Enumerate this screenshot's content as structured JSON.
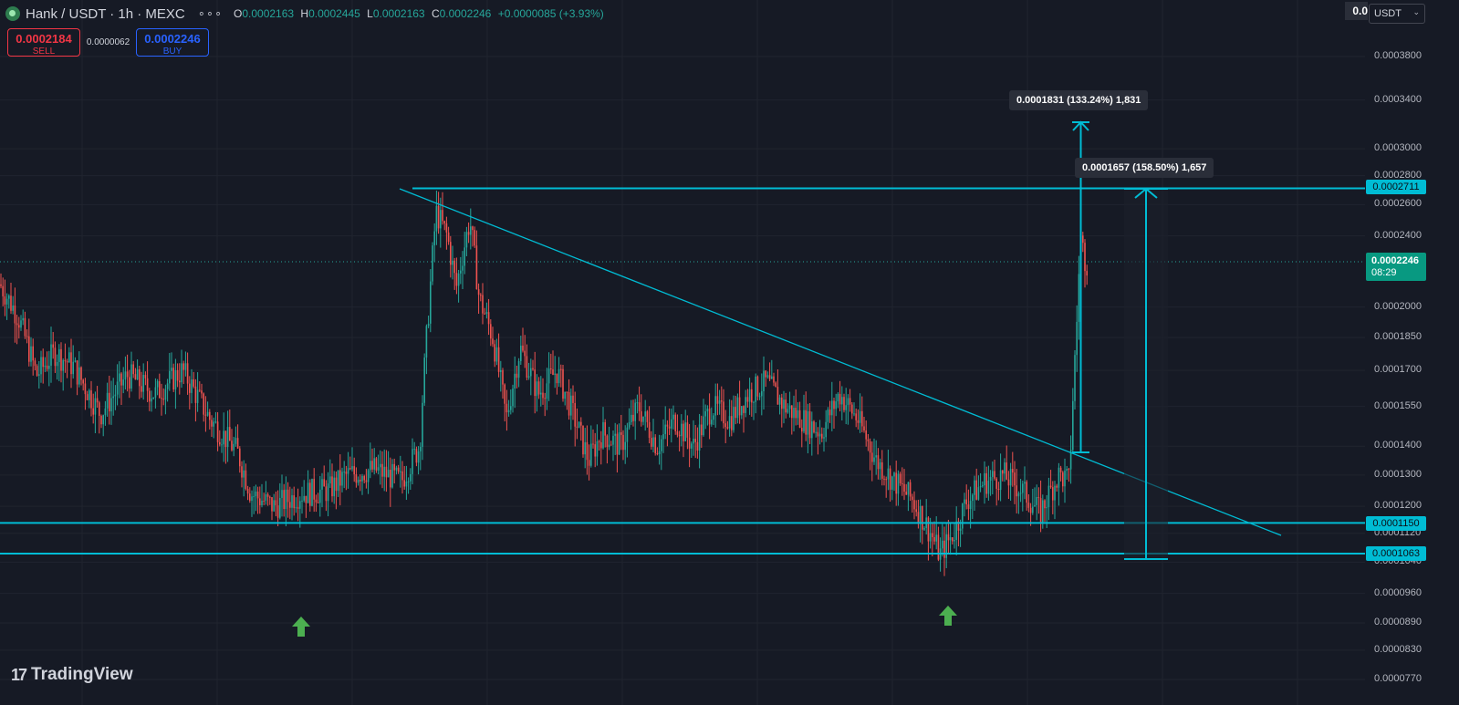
{
  "header": {
    "symbol": "Hank",
    "quote": "USDT",
    "interval": "1h",
    "exchange": "MEXC",
    "title": "Hank / USDT · 1h · MEXC",
    "more_label": "∘∘∘",
    "ohlc": {
      "o_label": "O",
      "o": "0.0002163",
      "h_label": "H",
      "h": "0.0002445",
      "l_label": "L",
      "l": "0.0002163",
      "c_label": "C",
      "c": "0.0002246",
      "change": "+0.0000085 (+3.93%)"
    }
  },
  "trade": {
    "sell_price": "0.0002184",
    "sell_label": "SELL",
    "spread": "0.0000062",
    "buy_price": "0.0002246",
    "buy_label": "BUY"
  },
  "currency_selector": {
    "value": "USDT"
  },
  "top_right_value": "0.0",
  "price_axis": {
    "ticks": [
      "0.0003800",
      "0.0003400",
      "0.0003000",
      "0.0002800",
      "0.0002600",
      "0.0002400",
      "0.0002000",
      "0.0001850",
      "0.0001700",
      "0.0001550",
      "0.0001400",
      "0.0001300",
      "0.0001200",
      "0.0001120",
      "0.0001040",
      "0.0000960",
      "0.0000890",
      "0.0000830",
      "0.0000770"
    ],
    "current_price": "0.0002246",
    "countdown": "08:29",
    "levels": [
      "0.0002711",
      "0.0001150",
      "0.0001063"
    ]
  },
  "measures": [
    {
      "text_value": "0.0001831",
      "text_pct": "(133.24%)",
      "text_bars": "1,831"
    },
    {
      "text_value": "0.0001657",
      "text_pct": "(158.50%)",
      "text_bars": "1,657"
    }
  ],
  "chart_data": {
    "type": "candlestick",
    "title": "Hank / USDT · 1h · MEXC",
    "xlabel": "",
    "ylabel": "",
    "ylim": [
      7.7e-05,
      0.0004
    ],
    "y_scale": "log",
    "grid": true,
    "colors": {
      "up": "#26a69a",
      "down": "#ef5350",
      "line": "#00bcd4",
      "bg": "#161a25",
      "marker": "#4caf50"
    },
    "series": [
      {
        "name": "",
        "anchors": [
          [
            0,
            0.000212
          ],
          [
            20,
            0.000195
          ],
          [
            40,
            0.000168
          ],
          [
            60,
            0.000178
          ],
          [
            80,
            0.000172
          ],
          [
            110,
            0.000152
          ],
          [
            140,
            0.000168
          ],
          [
            170,
            0.00016
          ],
          [
            200,
            0.00017
          ],
          [
            230,
            0.00015
          ],
          [
            260,
            0.000138
          ],
          [
            275,
            0.000124
          ],
          [
            300,
            0.00012
          ],
          [
            330,
            0.000124
          ],
          [
            360,
            0.000125
          ],
          [
            380,
            0.00013
          ],
          [
            410,
            0.000132
          ],
          [
            440,
            0.000128
          ],
          [
            460,
            0.00014
          ],
          [
            470,
            0.0002
          ],
          [
            478,
            0.000255
          ],
          [
            490,
            0.00024
          ],
          [
            500,
            0.00021
          ],
          [
            515,
            0.00025
          ],
          [
            525,
            0.000205
          ],
          [
            540,
            0.000185
          ],
          [
            555,
            0.00015
          ],
          [
            570,
            0.00018
          ],
          [
            590,
            0.00016
          ],
          [
            610,
            0.00017
          ],
          [
            630,
            0.00015
          ],
          [
            645,
            0.000135
          ],
          [
            660,
            0.000145
          ],
          [
            680,
            0.00014
          ],
          [
            700,
            0.000155
          ],
          [
            720,
            0.00014
          ],
          [
            740,
            0.00015
          ],
          [
            760,
            0.00014
          ],
          [
            780,
            0.000155
          ],
          [
            800,
            0.00015
          ],
          [
            820,
            0.00016
          ],
          [
            840,
            0.000165
          ],
          [
            860,
            0.000155
          ],
          [
            880,
            0.00015
          ],
          [
            900,
            0.000145
          ],
          [
            920,
            0.00016
          ],
          [
            940,
            0.00015
          ],
          [
            960,
            0.000135
          ],
          [
            980,
            0.000128
          ],
          [
            1000,
            0.000122
          ],
          [
            1020,
            0.000112
          ],
          [
            1030,
            0.000106
          ],
          [
            1045,
            0.000112
          ],
          [
            1060,
            0.000122
          ],
          [
            1080,
            0.000128
          ],
          [
            1100,
            0.00013
          ],
          [
            1120,
            0.000125
          ],
          [
            1140,
            0.000118
          ],
          [
            1160,
            0.00013
          ],
          [
            1172,
            0.000128
          ],
          [
            1176,
            0.00016
          ],
          [
            1180,
            0.00019
          ],
          [
            1184,
            0.00024
          ],
          [
            1190,
            0.000224
          ]
        ]
      }
    ],
    "horizontal_levels": [
      0.0002711,
      0.000115,
      0.0001063
    ],
    "trendline": {
      "from": [
        0.000264,
        0.0002711
      ],
      "to": [
        1.0,
        0.0001098
      ]
    },
    "annotations": [
      "0.0001831 (133.24%) 1,831",
      "0.0001657 (158.50%) 1,657"
    ]
  },
  "branding": {
    "logo_text": "TradingView",
    "logo_mark": "17"
  }
}
